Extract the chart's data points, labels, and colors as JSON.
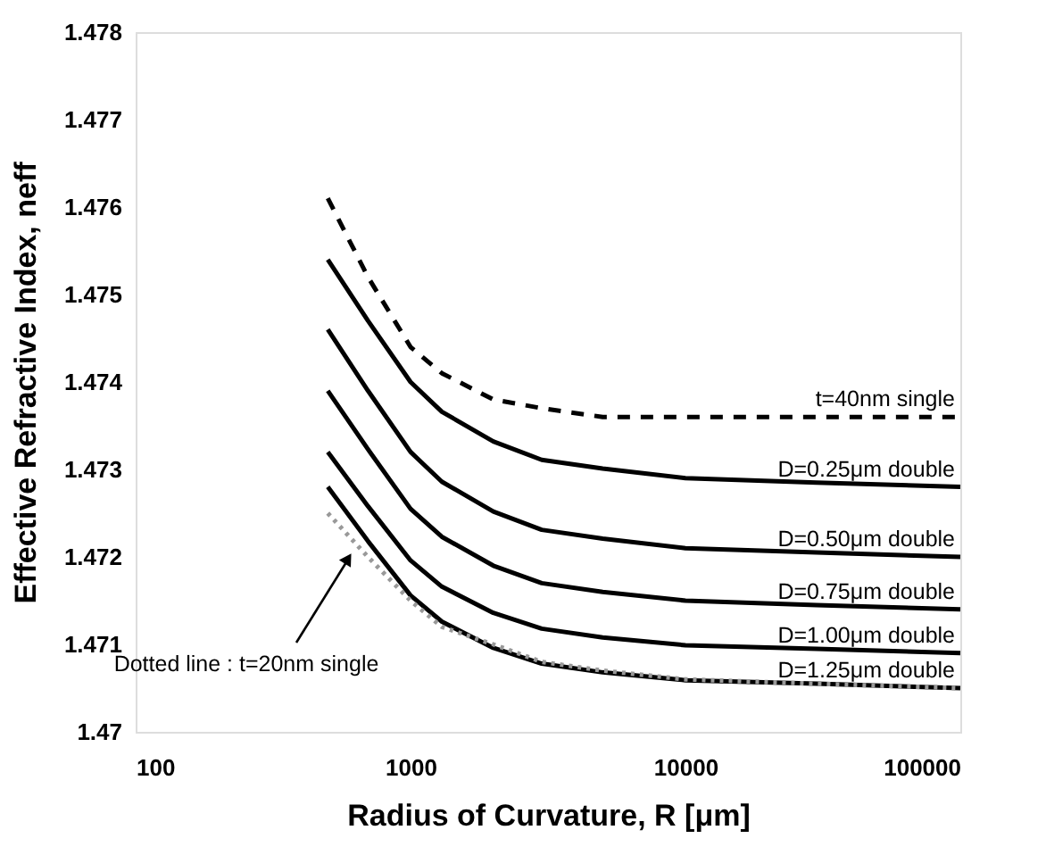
{
  "chart_data": {
    "type": "line",
    "xlabel": "Radius of Curvature, R [μm]",
    "ylabel": "Effective  Refractive  Index, neff",
    "log": "x",
    "xlim": [
      100,
      100000
    ],
    "xticks": [
      100,
      1000,
      10000,
      100000
    ],
    "ylim": [
      1.47,
      1.478
    ],
    "yticks": [
      1.47,
      1.471,
      1.472,
      1.473,
      1.474,
      1.475,
      1.476,
      1.477,
      1.478
    ],
    "grid": false,
    "legend": false,
    "marker": "none",
    "x": [
      500,
      700,
      1000,
      1300,
      2000,
      3000,
      5000,
      10000,
      30000,
      100000
    ],
    "series": [
      {
        "name": "t=40nm  single",
        "color": "#000000",
        "line_style": "dashed",
        "values": [
          1.4761,
          1.4752,
          1.4744,
          1.4741,
          1.4738,
          1.4737,
          1.4736,
          1.4736,
          1.4736,
          1.4736
        ]
      },
      {
        "name": "D=0.25μm double",
        "color": "#000000",
        "line_style": "solid",
        "values": [
          1.4754,
          1.4747,
          1.474,
          1.47366,
          1.47332,
          1.47311,
          1.47301,
          1.4729,
          1.47285,
          1.4728
        ]
      },
      {
        "name": "D=0.50μm double",
        "color": "#000000",
        "line_style": "solid",
        "values": [
          1.4746,
          1.4739,
          1.4732,
          1.47286,
          1.47252,
          1.47231,
          1.47221,
          1.4721,
          1.47205,
          1.472
        ]
      },
      {
        "name": "D=0.75μm double",
        "color": "#000000",
        "line_style": "solid",
        "values": [
          1.4739,
          1.47323,
          1.47255,
          1.47223,
          1.4719,
          1.4717,
          1.4716,
          1.4715,
          1.47145,
          1.4714
        ]
      },
      {
        "name": "D=1.00μm double",
        "color": "#000000",
        "line_style": "solid",
        "values": [
          1.4732,
          1.47258,
          1.47196,
          1.47166,
          1.47136,
          1.47118,
          1.47108,
          1.47099,
          1.47095,
          1.4709
        ]
      },
      {
        "name": "D=1.25μm double",
        "color": "#000000",
        "line_style": "solid",
        "values": [
          1.4728,
          1.47218,
          1.47156,
          1.47126,
          1.47096,
          1.47078,
          1.47068,
          1.47059,
          1.47055,
          1.4705
        ]
      },
      {
        "color": "#999999",
        "line_style": "dotted",
        "values": [
          1.4725,
          1.472,
          1.4715,
          1.4712,
          1.471,
          1.4708,
          1.4707,
          1.4706,
          1.47055,
          1.4705
        ]
      }
    ],
    "annotations": [
      "Dotted line : t=20nm  single"
    ]
  }
}
